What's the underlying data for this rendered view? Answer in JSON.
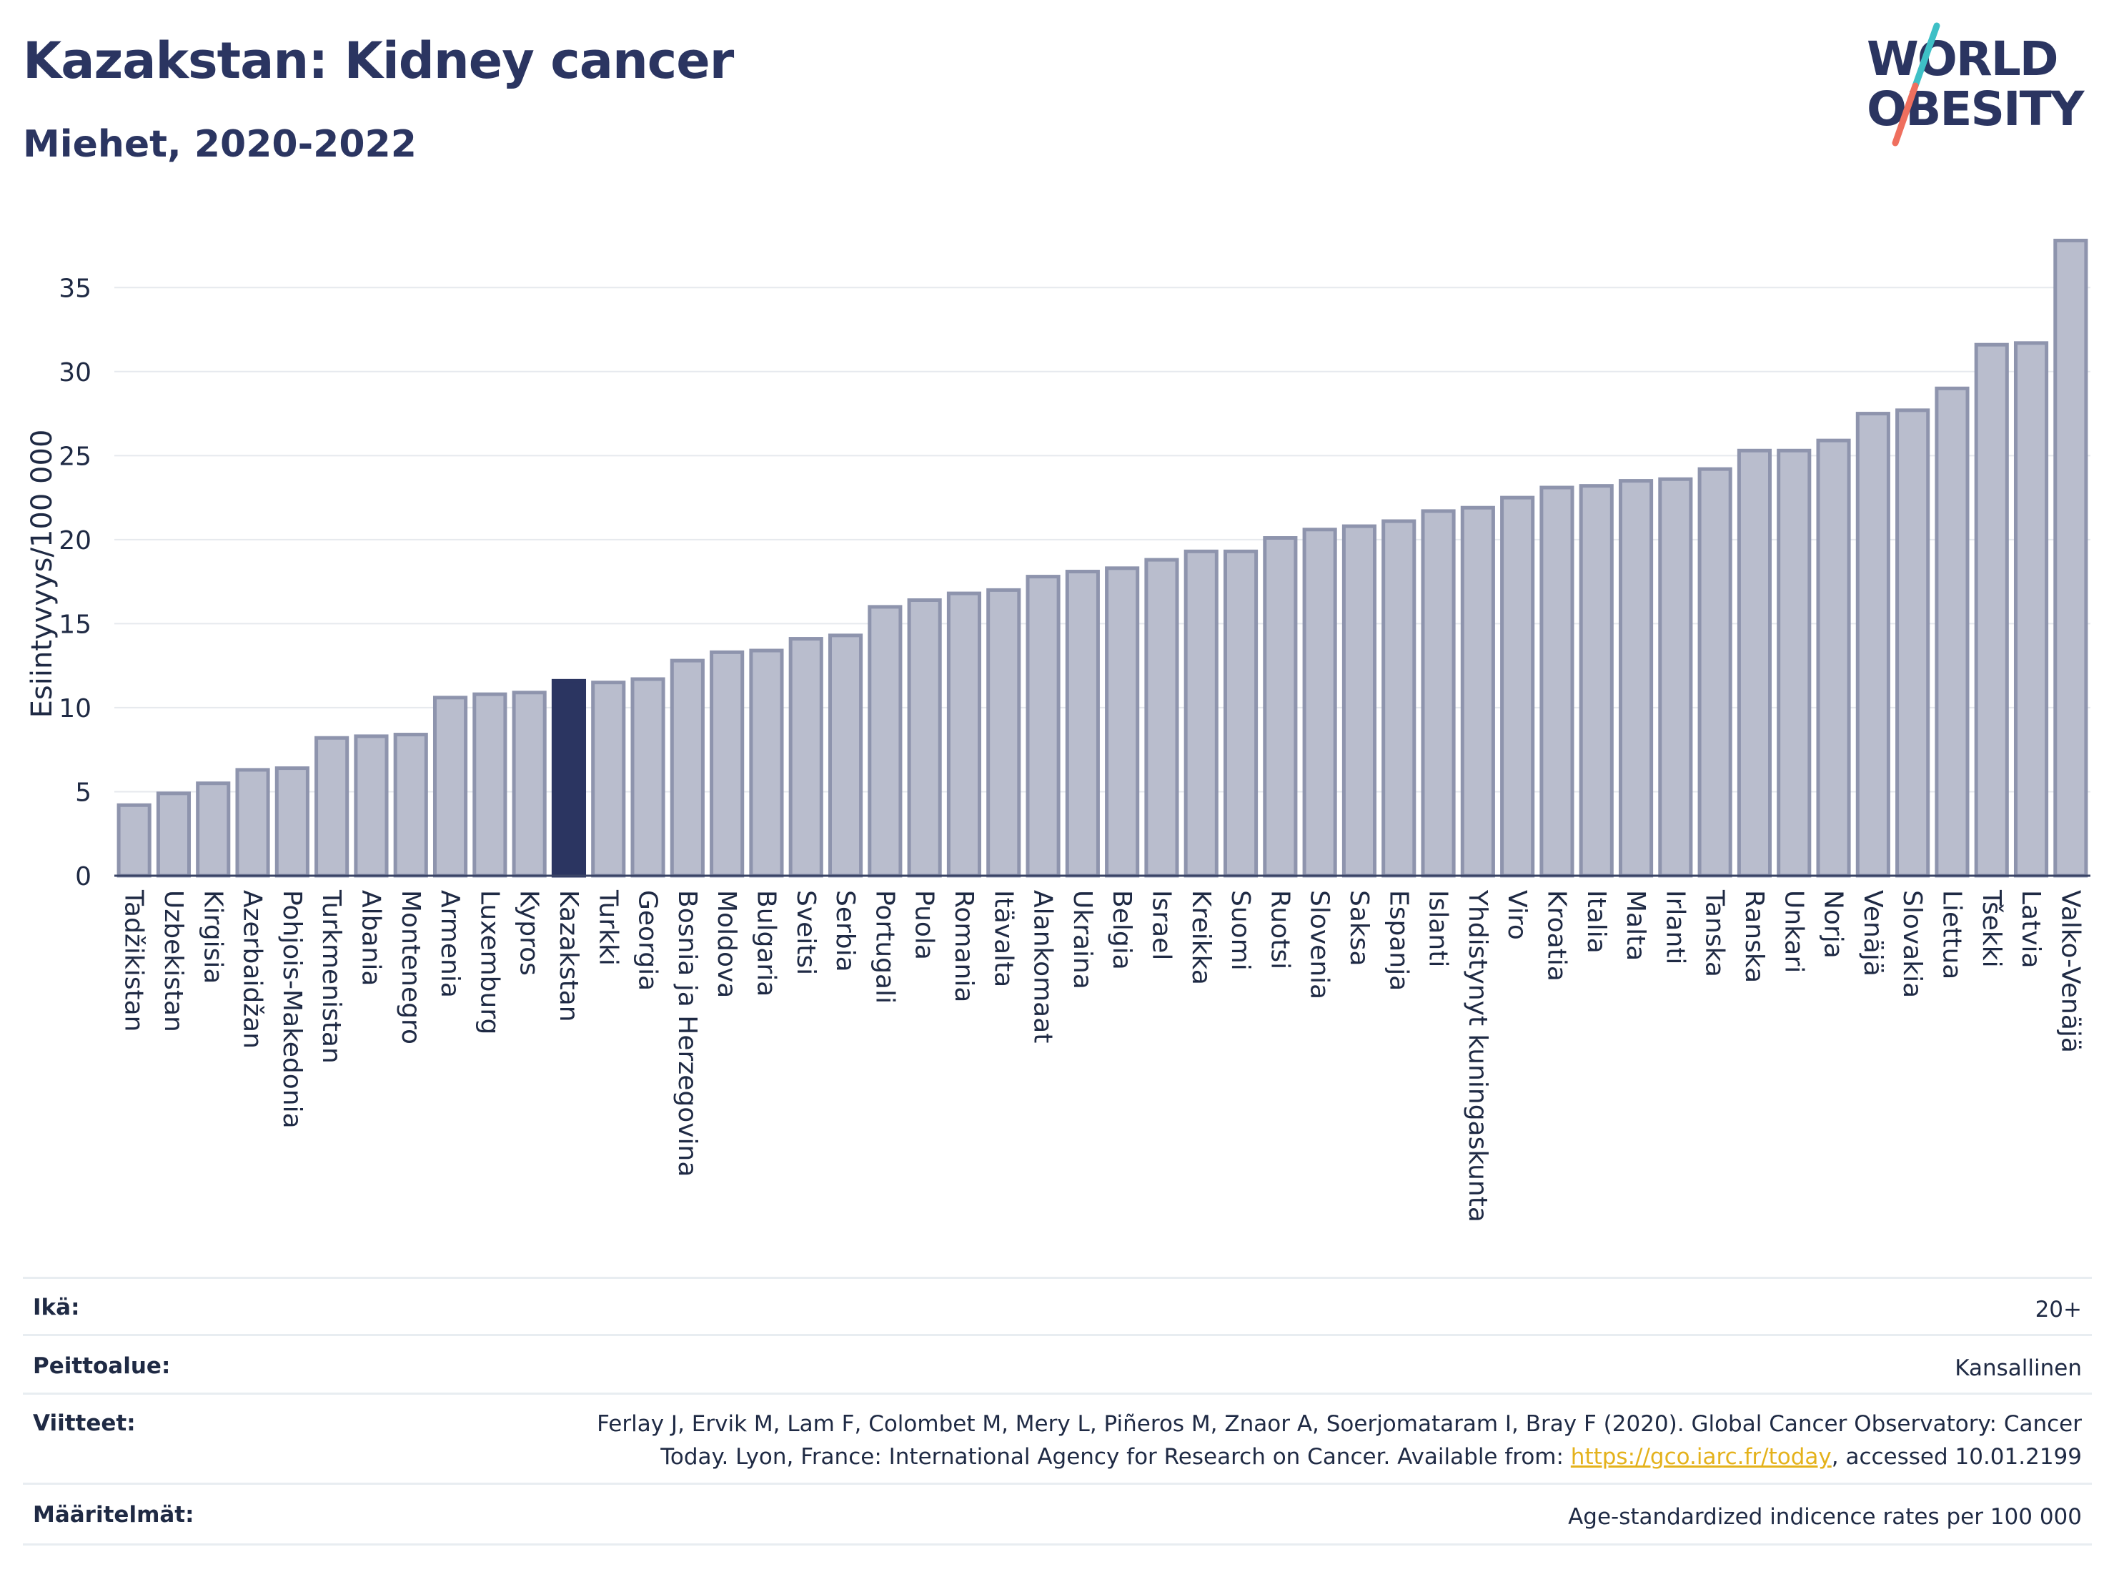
{
  "title": "Kazakstan: Kidney cancer",
  "subtitle": "Miehet, 2020-2022",
  "logo": {
    "line1": "WORLD",
    "line2": "OBESITY"
  },
  "colors": {
    "bar": "#b9bdcd",
    "bar_stroke": "#8e94ad",
    "highlight": "#2b3561",
    "title": "#2b3561",
    "grid": "#e6e9ee",
    "link": "#e4b21c",
    "logo_teal": "#3ec0c6",
    "logo_coral": "#ef6f5e"
  },
  "chart_data": {
    "type": "bar",
    "ylabel": "Esiintyvyys/100 000",
    "ylim": [
      0,
      38.5
    ],
    "yticks": [
      0,
      5,
      10,
      15,
      20,
      25,
      30,
      35
    ],
    "grid": true,
    "highlight": "Kazakstan",
    "categories": [
      "Tadžikistan",
      "Uzbekistan",
      "Kirgisia",
      "Azerbaidžan",
      "Pohjois-Makedonia",
      "Turkmenistan",
      "Albania",
      "Montenegro",
      "Armenia",
      "Luxemburg",
      "Kypros",
      "Kazakstan",
      "Turkki",
      "Georgia",
      "Bosnia ja Herzegovina",
      "Moldova",
      "Bulgaria",
      "Sveitsi",
      "Serbia",
      "Portugali",
      "Puola",
      "Romania",
      "Itävalta",
      "Alankomaat",
      "Ukraina",
      "Belgia",
      "Israel",
      "Kreikka",
      "Suomi",
      "Ruotsi",
      "Slovenia",
      "Saksa",
      "Espanja",
      "Islanti",
      "Yhdistynyt kuningaskunta",
      "Viro",
      "Kroatia",
      "Italia",
      "Malta",
      "Irlanti",
      "Tanska",
      "Ranska",
      "Unkari",
      "Norja",
      "Venäjä",
      "Slovakia",
      "Liettua",
      "Tšekki",
      "Latvia",
      "Valko-Venäjä"
    ],
    "values": [
      4.2,
      4.9,
      5.5,
      6.3,
      6.4,
      8.2,
      8.3,
      8.4,
      10.6,
      10.8,
      10.9,
      11.6,
      11.5,
      11.7,
      12.8,
      13.3,
      13.4,
      14.1,
      14.3,
      16.0,
      16.4,
      16.8,
      17.0,
      17.8,
      18.1,
      18.3,
      18.8,
      19.3,
      19.3,
      20.1,
      20.6,
      20.8,
      21.1,
      21.7,
      21.9,
      22.5,
      23.1,
      23.2,
      23.5,
      23.6,
      24.2,
      25.3,
      25.3,
      25.9,
      27.5,
      27.7,
      29.0,
      31.6,
      31.7,
      37.8
    ]
  },
  "meta": {
    "age": {
      "label": "Ikä:",
      "value": "20+"
    },
    "coverage": {
      "label": "Peittoalue:",
      "value": "Kansallinen"
    },
    "references": {
      "label": "Viitteet:",
      "line1": "Ferlay J, Ervik M, Lam F, Colombet M, Mery L, Piñeros M, Znaor A, Soerjomataram I, Bray F (2020). Global Cancer Observatory: Cancer",
      "line2_pre": "Today. Lyon, France: International Agency for Research on Cancer. Available from: ",
      "link": "https://gco.iarc.fr/today",
      "line2_post": ", accessed 10.01.2199"
    },
    "definitions": {
      "label": "Määritelmät:",
      "value": "Age-standardized indicence rates per 100 000"
    }
  }
}
